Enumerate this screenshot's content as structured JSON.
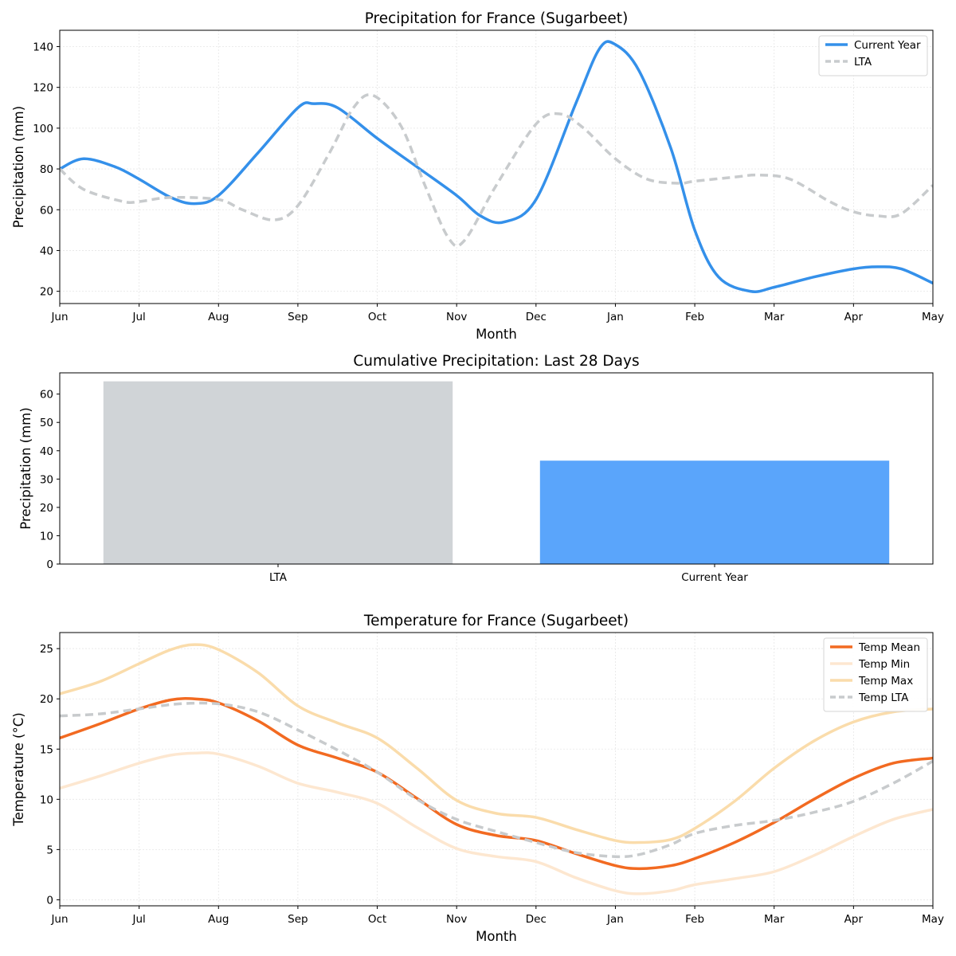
{
  "chart_data": [
    {
      "type": "line",
      "title": "Precipitation for France (Sugarbeet)",
      "xlabel": "Month",
      "ylabel": "Precipitation (mm)",
      "x_ticks": [
        "Jun",
        "Jul",
        "Aug",
        "Sep",
        "Oct",
        "Nov",
        "Dec",
        "Jan",
        "Feb",
        "Mar",
        "Apr",
        "May"
      ],
      "xlim": [
        0,
        11
      ],
      "ylim": [
        14,
        148
      ],
      "y_ticks": [
        20,
        40,
        60,
        80,
        100,
        120,
        140
      ],
      "grid": true,
      "legend_position": "top-right",
      "series": [
        {
          "name": "Current Year",
          "color": "#3490ea",
          "style": "solid",
          "points": [
            [
              0,
              80
            ],
            [
              0.3,
              85
            ],
            [
              0.7,
              81
            ],
            [
              1,
              75
            ],
            [
              1.4,
              66
            ],
            [
              1.7,
              63
            ],
            [
              2,
              67
            ],
            [
              2.5,
              88
            ],
            [
              3,
              110
            ],
            [
              3.2,
              112
            ],
            [
              3.5,
              110
            ],
            [
              4,
              95
            ],
            [
              4.5,
              81
            ],
            [
              5,
              67
            ],
            [
              5.3,
              57
            ],
            [
              5.6,
              54
            ],
            [
              6,
              65
            ],
            [
              6.5,
              112
            ],
            [
              6.8,
              139
            ],
            [
              7,
              141
            ],
            [
              7.3,
              128
            ],
            [
              7.7,
              90
            ],
            [
              8,
              50
            ],
            [
              8.3,
              27
            ],
            [
              8.7,
              20
            ],
            [
              9,
              22
            ],
            [
              9.5,
              27
            ],
            [
              10,
              31
            ],
            [
              10.3,
              32
            ],
            [
              10.6,
              31
            ],
            [
              11,
              24
            ]
          ]
        },
        {
          "name": "LTA",
          "color": "#c8cbcd",
          "style": "dashed",
          "points": [
            [
              0,
              80
            ],
            [
              0.3,
              70
            ],
            [
              0.8,
              64
            ],
            [
              1,
              64
            ],
            [
              1.4,
              66
            ],
            [
              2,
              65
            ],
            [
              2.3,
              60
            ],
            [
              2.7,
              55
            ],
            [
              3,
              62
            ],
            [
              3.4,
              88
            ],
            [
              3.7,
              110
            ],
            [
              3.95,
              116
            ],
            [
              4.3,
              101
            ],
            [
              4.6,
              72
            ],
            [
              4.9,
              46
            ],
            [
              5.1,
              45
            ],
            [
              5.5,
              72
            ],
            [
              6,
              102
            ],
            [
              6.3,
              107
            ],
            [
              6.6,
              100
            ],
            [
              7,
              85
            ],
            [
              7.4,
              75
            ],
            [
              7.8,
              73
            ],
            [
              8,
              74
            ],
            [
              8.5,
              76
            ],
            [
              8.8,
              77
            ],
            [
              9.2,
              75
            ],
            [
              9.7,
              64
            ],
            [
              10,
              59
            ],
            [
              10.3,
              57
            ],
            [
              10.6,
              58
            ],
            [
              11,
              72
            ]
          ]
        }
      ]
    },
    {
      "type": "bar",
      "title": "Cumulative Precipitation: Last 28 Days",
      "xlabel": "",
      "ylabel": "Precipitation (mm)",
      "categories": [
        "LTA",
        "Current Year"
      ],
      "values": [
        64.5,
        36.5
      ],
      "colors": [
        "#d0d4d7",
        "#5aa5fb"
      ],
      "ylim": [
        0,
        67.5
      ],
      "y_ticks": [
        0,
        10,
        20,
        30,
        40,
        50,
        60
      ],
      "grid": false
    },
    {
      "type": "line",
      "title": "Temperature for France (Sugarbeet)",
      "xlabel": "Month",
      "ylabel": "Temperature (°C)",
      "x_ticks": [
        "Jun",
        "Jul",
        "Aug",
        "Sep",
        "Oct",
        "Nov",
        "Dec",
        "Jan",
        "Feb",
        "Mar",
        "Apr",
        "May"
      ],
      "xlim": [
        0,
        11
      ],
      "ylim": [
        -0.6,
        26.6
      ],
      "y_ticks": [
        0,
        5,
        10,
        15,
        20,
        25
      ],
      "grid": true,
      "legend_position": "top-right",
      "series": [
        {
          "name": "Temp Mean",
          "color": "#f26a21",
          "style": "solid",
          "width": 3.5,
          "points": [
            [
              0,
              16.1
            ],
            [
              0.5,
              17.5
            ],
            [
              1,
              19.0
            ],
            [
              1.4,
              19.9
            ],
            [
              1.7,
              20.0
            ],
            [
              2,
              19.6
            ],
            [
              2.5,
              17.8
            ],
            [
              3,
              15.4
            ],
            [
              3.5,
              14.1
            ],
            [
              4,
              12.7
            ],
            [
              4.5,
              10.1
            ],
            [
              5,
              7.5
            ],
            [
              5.5,
              6.4
            ],
            [
              6,
              5.9
            ],
            [
              6.5,
              4.6
            ],
            [
              7,
              3.4
            ],
            [
              7.3,
              3.1
            ],
            [
              7.7,
              3.4
            ],
            [
              8,
              4.1
            ],
            [
              8.5,
              5.7
            ],
            [
              9,
              7.7
            ],
            [
              9.5,
              10.0
            ],
            [
              10,
              12.1
            ],
            [
              10.5,
              13.6
            ],
            [
              11,
              14.1
            ]
          ]
        },
        {
          "name": "Temp Min",
          "color": "#fde7d0",
          "style": "solid",
          "width": 3.5,
          "points": [
            [
              0,
              11.1
            ],
            [
              0.5,
              12.3
            ],
            [
              1,
              13.6
            ],
            [
              1.4,
              14.4
            ],
            [
              1.7,
              14.6
            ],
            [
              2,
              14.5
            ],
            [
              2.5,
              13.3
            ],
            [
              3,
              11.6
            ],
            [
              3.5,
              10.7
            ],
            [
              4,
              9.6
            ],
            [
              4.5,
              7.2
            ],
            [
              5,
              5.1
            ],
            [
              5.5,
              4.3
            ],
            [
              6,
              3.8
            ],
            [
              6.5,
              2.2
            ],
            [
              7,
              0.9
            ],
            [
              7.3,
              0.6
            ],
            [
              7.7,
              0.9
            ],
            [
              8,
              1.5
            ],
            [
              8.5,
              2.1
            ],
            [
              9,
              2.8
            ],
            [
              9.5,
              4.4
            ],
            [
              10,
              6.3
            ],
            [
              10.5,
              8.0
            ],
            [
              11,
              9.0
            ]
          ]
        },
        {
          "name": "Temp Max",
          "color": "#fadcab",
          "style": "solid",
          "width": 3.5,
          "points": [
            [
              0,
              20.5
            ],
            [
              0.5,
              21.7
            ],
            [
              1,
              23.5
            ],
            [
              1.4,
              24.9
            ],
            [
              1.7,
              25.4
            ],
            [
              2,
              24.9
            ],
            [
              2.5,
              22.6
            ],
            [
              3,
              19.3
            ],
            [
              3.5,
              17.6
            ],
            [
              4,
              16.1
            ],
            [
              4.5,
              13.1
            ],
            [
              5,
              9.9
            ],
            [
              5.5,
              8.6
            ],
            [
              6,
              8.2
            ],
            [
              6.5,
              7.0
            ],
            [
              7,
              5.9
            ],
            [
              7.3,
              5.7
            ],
            [
              7.7,
              6.0
            ],
            [
              8,
              7.1
            ],
            [
              8.5,
              9.8
            ],
            [
              9,
              13.1
            ],
            [
              9.5,
              15.8
            ],
            [
              10,
              17.7
            ],
            [
              10.5,
              18.7
            ],
            [
              11,
              19.0
            ]
          ]
        },
        {
          "name": "Temp LTA",
          "color": "#c8cbcd",
          "style": "dashed",
          "width": 3.5,
          "points": [
            [
              0,
              18.3
            ],
            [
              0.5,
              18.5
            ],
            [
              1,
              19.0
            ],
            [
              1.5,
              19.5
            ],
            [
              2,
              19.5
            ],
            [
              2.5,
              18.7
            ],
            [
              3,
              16.9
            ],
            [
              3.5,
              14.9
            ],
            [
              4,
              12.7
            ],
            [
              4.5,
              10.0
            ],
            [
              5,
              8.0
            ],
            [
              5.5,
              6.8
            ],
            [
              6,
              5.7
            ],
            [
              6.5,
              4.7
            ],
            [
              7,
              4.3
            ],
            [
              7.3,
              4.5
            ],
            [
              7.7,
              5.5
            ],
            [
              8,
              6.6
            ],
            [
              8.5,
              7.4
            ],
            [
              9,
              7.9
            ],
            [
              9.5,
              8.7
            ],
            [
              10,
              9.8
            ],
            [
              10.5,
              11.6
            ],
            [
              11,
              13.8
            ]
          ]
        }
      ]
    }
  ]
}
